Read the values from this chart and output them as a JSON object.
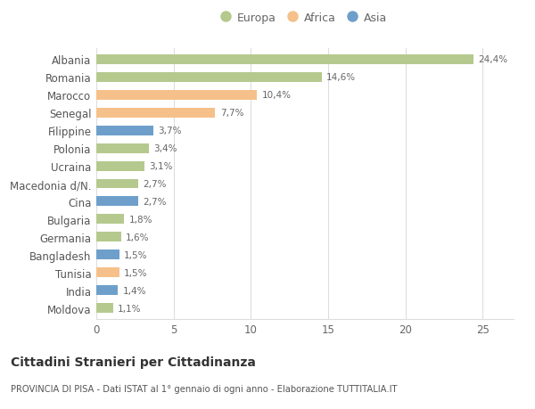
{
  "categories": [
    "Albania",
    "Romania",
    "Marocco",
    "Senegal",
    "Filippine",
    "Polonia",
    "Ucraina",
    "Macedonia d/N.",
    "Cina",
    "Bulgaria",
    "Germania",
    "Bangladesh",
    "Tunisia",
    "India",
    "Moldova"
  ],
  "values": [
    24.4,
    14.6,
    10.4,
    7.7,
    3.7,
    3.4,
    3.1,
    2.7,
    2.7,
    1.8,
    1.6,
    1.5,
    1.5,
    1.4,
    1.1
  ],
  "colors": [
    "#b5c98e",
    "#b5c98e",
    "#f5c08a",
    "#f5c08a",
    "#6e9fcb",
    "#b5c98e",
    "#b5c98e",
    "#b5c98e",
    "#6e9fcb",
    "#b5c98e",
    "#b5c98e",
    "#6e9fcb",
    "#f5c08a",
    "#6e9fcb",
    "#b5c98e"
  ],
  "labels": [
    "24,4%",
    "14,6%",
    "10,4%",
    "7,7%",
    "3,7%",
    "3,4%",
    "3,1%",
    "2,7%",
    "2,7%",
    "1,8%",
    "1,6%",
    "1,5%",
    "1,5%",
    "1,4%",
    "1,1%"
  ],
  "legend_labels": [
    "Europa",
    "Africa",
    "Asia"
  ],
  "legend_colors": [
    "#b5c98e",
    "#f5c08a",
    "#6e9fcb"
  ],
  "title": "Cittadini Stranieri per Cittadinanza",
  "subtitle": "PROVINCIA DI PISA - Dati ISTAT al 1° gennaio di ogni anno - Elaborazione TUTTITALIA.IT",
  "xlim": [
    0,
    27
  ],
  "xticks": [
    0,
    5,
    10,
    15,
    20,
    25
  ],
  "background_color": "#ffffff",
  "grid_color": "#dddddd",
  "bar_height": 0.55
}
